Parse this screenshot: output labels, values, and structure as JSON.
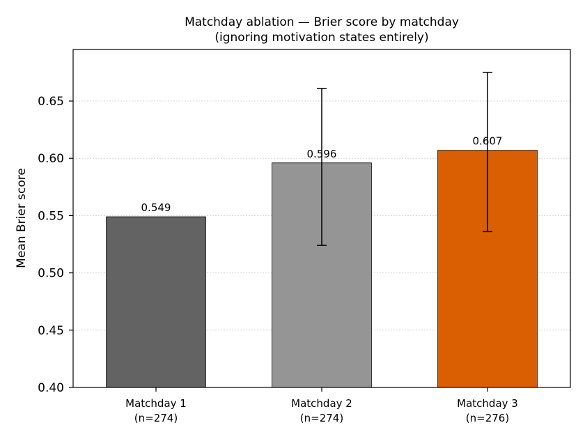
{
  "chart_data": {
    "type": "bar",
    "title": "Matchday ablation — Brier score by matchday",
    "subtitle": "(ignoring motivation states entirely)",
    "xlabel": "",
    "ylabel": "Mean Brier score",
    "ylim": [
      0.4,
      0.695
    ],
    "yticks": [
      "0.40",
      "0.45",
      "0.50",
      "0.55",
      "0.60",
      "0.65"
    ],
    "grid": "y dotted",
    "categories": [
      {
        "name": "Matchday 1",
        "n": "(n=274)"
      },
      {
        "name": "Matchday 2",
        "n": "(n=274)"
      },
      {
        "name": "Matchday 3",
        "n": "(n=276)"
      }
    ],
    "values": [
      0.549,
      0.596,
      0.607
    ],
    "value_labels": [
      "0.549",
      "0.596",
      "0.607"
    ],
    "error_bars": [
      null,
      [
        0.524,
        0.661
      ],
      [
        0.536,
        0.675
      ]
    ],
    "colors": [
      "#636363",
      "#959595",
      "#d95f02"
    ]
  }
}
